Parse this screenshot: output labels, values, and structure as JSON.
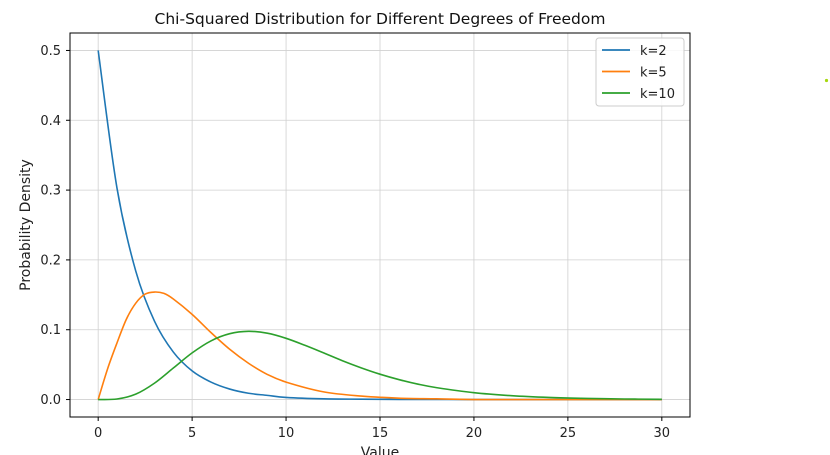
{
  "chart_data": {
    "type": "line",
    "title": "Chi-Squared Distribution for Different Degrees of Freedom",
    "xlabel": "Value",
    "ylabel": "Probability Density",
    "xlim": [
      -1.5,
      31.5
    ],
    "ylim": [
      -0.025,
      0.525
    ],
    "xticks": [
      0,
      5,
      10,
      15,
      20,
      25,
      30
    ],
    "yticks": [
      0.0,
      0.1,
      0.2,
      0.3,
      0.4,
      0.5
    ],
    "xtick_labels": [
      "0",
      "5",
      "10",
      "15",
      "20",
      "25",
      "30"
    ],
    "ytick_labels": [
      "0.0",
      "0.1",
      "0.2",
      "0.3",
      "0.4",
      "0.5"
    ],
    "grid": true,
    "legend_position": "top-right",
    "series": [
      {
        "name": "k=2",
        "color": "#1f77b4",
        "x": [
          0,
          1,
          2,
          3,
          4,
          5,
          6,
          7,
          8,
          9,
          10,
          12,
          14,
          16,
          18,
          20,
          25,
          30
        ],
        "y": [
          0.5,
          0.303,
          0.184,
          0.112,
          0.068,
          0.041,
          0.025,
          0.015,
          0.009,
          0.006,
          0.003,
          0.001,
          0.0005,
          0.0002,
          0.0001,
          0.0,
          0.0,
          0.0
        ]
      },
      {
        "name": "k=5",
        "color": "#ff7f0e",
        "x": [
          0,
          0.5,
          1,
          1.5,
          2,
          2.5,
          3,
          3.5,
          4,
          5,
          6,
          7,
          8,
          9,
          10,
          12,
          14,
          16,
          18,
          20,
          25,
          30
        ],
        "y": [
          0.0,
          0.044,
          0.081,
          0.115,
          0.138,
          0.151,
          0.154,
          0.152,
          0.144,
          0.122,
          0.096,
          0.072,
          0.052,
          0.036,
          0.025,
          0.011,
          0.005,
          0.002,
          0.001,
          0.0,
          0.0,
          0.0
        ]
      },
      {
        "name": "k=10",
        "color": "#2ca02c",
        "x": [
          0,
          1,
          2,
          3,
          4,
          5,
          6,
          7,
          8,
          9,
          10,
          11,
          12,
          13,
          14,
          15,
          16,
          17,
          18,
          20,
          22,
          24,
          26,
          28,
          30
        ],
        "y": [
          0.0,
          0.0008,
          0.0077,
          0.0235,
          0.0451,
          0.0668,
          0.084,
          0.0943,
          0.0977,
          0.095,
          0.0877,
          0.0777,
          0.0668,
          0.0556,
          0.0454,
          0.0363,
          0.0286,
          0.0222,
          0.0171,
          0.0098,
          0.0055,
          0.003,
          0.0016,
          0.0008,
          0.0004
        ]
      }
    ]
  }
}
